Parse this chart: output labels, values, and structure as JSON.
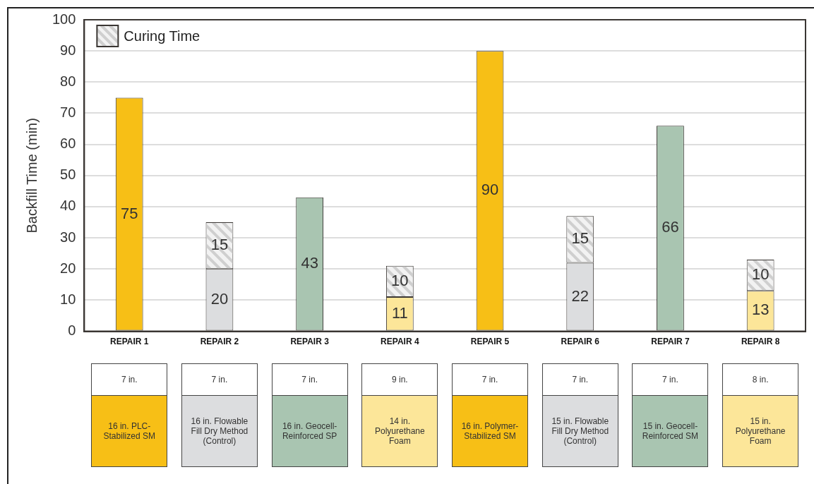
{
  "chart_data": {
    "type": "bar",
    "stacked": true,
    "ylabel": "Backfill Time (min)",
    "categories": [
      "REPAIR 1",
      "REPAIR 2",
      "REPAIR 3",
      "REPAIR 4",
      "REPAIR 5",
      "REPAIR 6",
      "REPAIR 7",
      "REPAIR 8"
    ],
    "series": [
      {
        "colors": [
          "#f7bf16",
          "#dcdddf",
          "#a9c5b1",
          "#fce699",
          "#f7bf16",
          "#dcdddf",
          "#a9c5b1",
          "#fce699"
        ],
        "values": [
          75,
          20,
          43,
          11,
          90,
          22,
          66,
          13
        ]
      },
      {
        "name": "Curing Time",
        "color": "#f2f2f2",
        "values": [
          null,
          15,
          null,
          10,
          null,
          15,
          null,
          10
        ]
      }
    ],
    "ylim": [
      0,
      100
    ],
    "yticks": [
      0,
      10,
      20,
      30,
      40,
      50,
      60,
      70,
      80,
      90,
      100
    ],
    "grid": "y",
    "legend": "top left",
    "data_labels": true,
    "annotations": [
      "7 in.",
      "16 in. PLC-Stabilized SM",
      "7 in.",
      "16 in. Flowable Fill Dry Method (Control)",
      "7 in.",
      "16 in. Geocell-Reinforced SP",
      "9 in.",
      "14 in. Polyurethane Foam",
      "7 in.",
      "16 in. Polymer-Stabilized SM",
      "7 in.",
      "15 in. Flowable Fill Dry Method (Control)",
      "7 in.",
      "15 in. Geocell-Reinforced SM",
      "8 in.",
      "15 in. Polyurethane Foam"
    ]
  }
}
